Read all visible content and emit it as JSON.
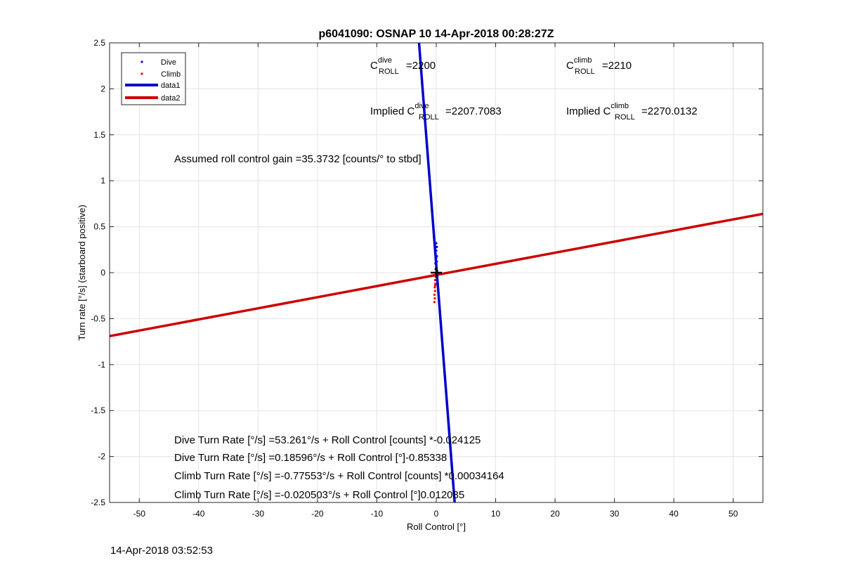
{
  "chart_data": {
    "type": "scatter",
    "title": "p6041090: OSNAP 10 14-Apr-2018 00:28:27Z",
    "xlabel": "Roll Control [°]",
    "ylabel": "Turn rate [°/s] (starboard positive)",
    "xlim": [
      -55,
      55
    ],
    "ylim": [
      -2.5,
      2.5
    ],
    "xticks": [
      -50,
      -40,
      -30,
      -20,
      -10,
      0,
      10,
      20,
      30,
      40,
      50
    ],
    "yticks": [
      -2.5,
      -2,
      -1.5,
      -1,
      -0.5,
      0,
      0.5,
      1,
      1.5,
      2,
      2.5
    ],
    "grid": true,
    "legend_position": "top-left",
    "legend": [
      {
        "name": "Dive",
        "kind": "marker",
        "color": "#0000ff"
      },
      {
        "name": "Climb",
        "kind": "marker",
        "color": "#ff0000"
      },
      {
        "name": "data1",
        "kind": "line",
        "color": "#0000cc"
      },
      {
        "name": "data2",
        "kind": "line",
        "color": "#cc0000"
      }
    ],
    "series": [
      {
        "name": "Dive",
        "color": "#0000ff",
        "points": [
          [
            0.0,
            0.32
          ],
          [
            0.1,
            0.28
          ],
          [
            0.0,
            0.24
          ],
          [
            -0.1,
            0.2
          ],
          [
            0.0,
            0.16
          ],
          [
            0.1,
            0.12
          ],
          [
            0.0,
            0.08
          ],
          [
            -0.1,
            0.04
          ],
          [
            0.0,
            0.0
          ],
          [
            0.05,
            -0.04
          ],
          [
            0.0,
            -0.08
          ],
          [
            -0.05,
            -0.12
          ],
          [
            0.1,
            0.18
          ],
          [
            -0.15,
            0.1
          ],
          [
            0.15,
            0.02
          ]
        ]
      },
      {
        "name": "Climb",
        "color": "#ff0000",
        "points": [
          [
            -0.1,
            -0.04
          ],
          [
            -0.2,
            -0.08
          ],
          [
            -0.15,
            -0.12
          ],
          [
            -0.25,
            -0.16
          ],
          [
            -0.2,
            -0.2
          ],
          [
            -0.3,
            -0.24
          ],
          [
            -0.25,
            -0.28
          ],
          [
            -0.3,
            -0.32
          ],
          [
            -0.1,
            -0.02
          ],
          [
            -0.2,
            -0.14
          ]
        ]
      },
      {
        "name": "data1",
        "color": "#0000cc",
        "line": [
          [
            -2.9,
            2.5
          ],
          [
            3.1,
            -2.5
          ]
        ]
      },
      {
        "name": "data2",
        "color": "#cc0000",
        "line": [
          [
            -55,
            -0.69
          ],
          [
            55,
            0.64
          ]
        ]
      }
    ],
    "center_marker": [
      0,
      0
    ]
  },
  "annotations": {
    "c_dive": {
      "base": "C",
      "sup": "dive",
      "sub": "ROLL",
      "value": "=2200"
    },
    "c_climb": {
      "base": "C",
      "sup": "climb",
      "sub": "ROLL",
      "value": "=2210"
    },
    "implied_dive": {
      "prefix": "Implied C",
      "sup": "dive",
      "sub": "ROLL",
      "value": "=2207.7083"
    },
    "implied_climb": {
      "prefix": "Implied C",
      "sup": "climb",
      "sub": "ROLL",
      "value": "=2270.0132"
    },
    "gain": "Assumed roll control gain =35.3732 [counts/° to stbd]",
    "fit_lines": [
      "Dive Turn Rate [°/s] =53.261°/s + Roll Control [counts] *-0.024125",
      "Dive Turn Rate [°/s] =0.18596°/s + Roll Control [°]-0.85338",
      "Climb Turn Rate [°/s] =-0.77553°/s + Roll Control [counts] *0.00034164",
      "Climb Turn Rate [°/s] =-0.020503°/s + Roll Control [°]0.012085"
    ]
  },
  "timestamp": "14-Apr-2018 03:52:53"
}
